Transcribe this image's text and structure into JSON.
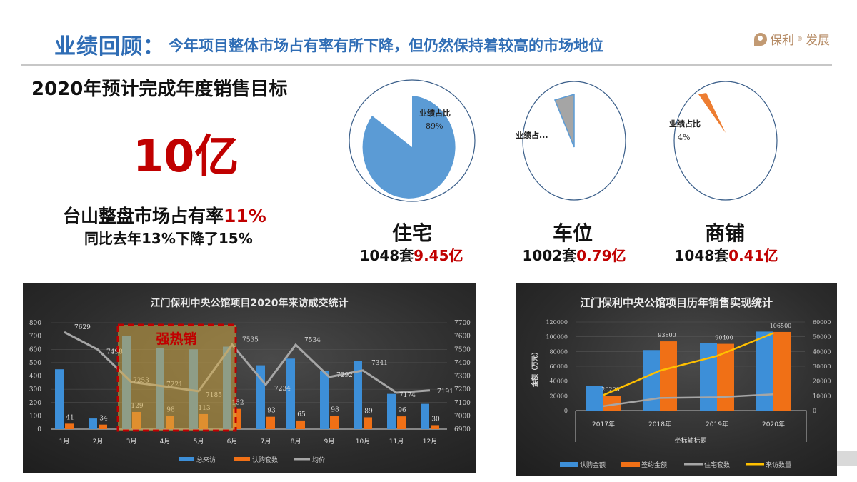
{
  "header": {
    "title": "业绩回顾：",
    "subtitle": "今年项目整体市场占有率有所下降，但仍然保持着较高的市场地位",
    "logo_text": "保利",
    "logo_sup": "®",
    "logo_suffix": "发展"
  },
  "summary": {
    "target_title": "2020年预计完成年度销售目标",
    "target_value": "10亿",
    "share_label": "台山整盘市场占有率",
    "share_value": "11%",
    "share_compare": "同比去年13%下降了15%"
  },
  "pies": [
    {
      "name": "住宅",
      "units": "1048套",
      "amount": "9.45亿",
      "label": "业绩占比",
      "pct_label": "89%",
      "pct": 89,
      "color": "#5b9bd5"
    },
    {
      "name": "车位",
      "units": "1002套",
      "amount": "0.79亿",
      "label": "业绩占...",
      "pct_label": "",
      "pct": 7,
      "color": "#a5a5a5"
    },
    {
      "name": "商铺",
      "units": "1048套",
      "amount": "0.41亿",
      "label": "业绩占比",
      "pct_label": "4%",
      "pct": 4,
      "color": "#ed7d31"
    }
  ],
  "chart_data": [
    {
      "type": "bar",
      "title": "江门保利中央公馆项目2020年来访成交统计",
      "categories": [
        "1月",
        "2月",
        "3月",
        "4月",
        "5月",
        "6月",
        "7月",
        "8月",
        "9月",
        "10月",
        "11月",
        "12月"
      ],
      "series": [
        {
          "name": "总来访",
          "type": "bar",
          "axis": "left",
          "color": "#3d8fd8",
          "values": [
            450,
            80,
            700,
            610,
            600,
            620,
            480,
            530,
            440,
            510,
            265,
            190
          ]
        },
        {
          "name": "认购套数",
          "type": "bar",
          "axis": "left",
          "color": "#f07016",
          "values": [
            41,
            34,
            129,
            98,
            113,
            152,
            93,
            65,
            98,
            89,
            96,
            30
          ]
        },
        {
          "name": "均价",
          "type": "line",
          "axis": "right",
          "color": "#a6a6a6",
          "values": [
            7629,
            7498,
            7253,
            7221,
            7185,
            7535,
            7234,
            7534,
            7292,
            7341,
            7174,
            7191
          ]
        }
      ],
      "left_axis": {
        "ticks": [
          "0",
          "100",
          "200",
          "300",
          "400",
          "500",
          "600",
          "700",
          "800"
        ],
        "range": [
          0,
          800
        ]
      },
      "right_axis": {
        "ticks": [
          "6900",
          "7000",
          "7100",
          "7200",
          "7300",
          "7400",
          "7500",
          "7600",
          "7700"
        ],
        "range": [
          6900,
          7700
        ]
      },
      "annotation": {
        "text": "强热销",
        "months": [
          "3月",
          "4月",
          "5月",
          "6月"
        ]
      },
      "legend": [
        "总来访",
        "认购套数",
        "均价"
      ],
      "legend_position": "bottom",
      "grid": true
    },
    {
      "type": "bar",
      "title": "江门保利中央公馆项目历年销售实现统计",
      "categories": [
        "2017年",
        "2018年",
        "2019年",
        "2020年"
      ],
      "xlabel": "坐标轴标题",
      "ylabel": "金额（万元）",
      "series": [
        {
          "name": "认购金额",
          "type": "bar",
          "axis": "left",
          "color": "#3d8fd8",
          "values": [
            33000,
            82000,
            91000,
            107000
          ]
        },
        {
          "name": "签约金额",
          "type": "bar",
          "axis": "left",
          "color": "#f07016",
          "values": [
            20200,
            93800,
            90400,
            106500
          ],
          "labels": [
            "20200",
            "93800",
            "90400",
            "106500"
          ]
        },
        {
          "name": "住宅套数",
          "type": "line",
          "axis": "right",
          "color": "#a6a6a6",
          "values": [
            3000,
            8500,
            9000,
            11000
          ]
        },
        {
          "name": "来访数量",
          "type": "line",
          "axis": "right",
          "color": "#ffc000",
          "values": [
            10500,
            27000,
            37000,
            52500
          ]
        }
      ],
      "left_axis": {
        "ticks": [
          "0",
          "20000",
          "40000",
          "60000",
          "80000",
          "100000",
          "120000"
        ],
        "range": [
          0,
          120000
        ]
      },
      "right_axis": {
        "ticks": [
          "0",
          "10000",
          "20000",
          "30000",
          "40000",
          "50000",
          "60000"
        ],
        "range": [
          0,
          60000
        ]
      },
      "legend": [
        "认购金额",
        "签约金额",
        "住宅套数",
        "来访数量"
      ],
      "legend_position": "bottom",
      "grid": true
    }
  ]
}
